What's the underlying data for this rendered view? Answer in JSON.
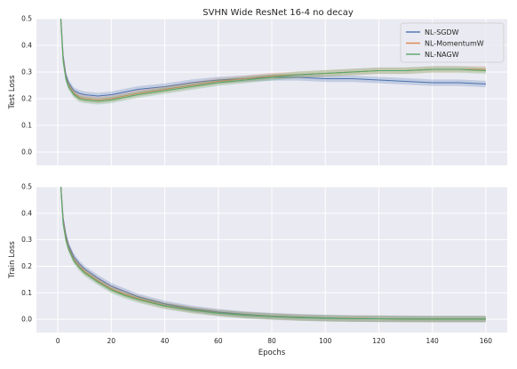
{
  "chart_data": {
    "type": "line",
    "title": "SVHN Wide ResNet 16-4 no decay",
    "xlabel": "Epochs",
    "xlim": [
      -8,
      168
    ],
    "xticks": [
      0,
      20,
      40,
      60,
      80,
      100,
      120,
      140,
      160
    ],
    "legend": {
      "placement": "top-right",
      "entries": [
        "NL-SGDW",
        "NL-MomentumW",
        "NL-NAGW"
      ]
    },
    "colors": {
      "NL-SGDW": "#4c72b0",
      "NL-MomentumW": "#dd8452",
      "NL-NAGW": "#55a868"
    },
    "grid": true,
    "background": "#eaeaf2",
    "panels": [
      {
        "name": "test",
        "ylabel": "Test Loss",
        "ylim": [
          -0.05,
          0.5
        ],
        "yticks": [
          "0.0",
          "0.1",
          "0.2",
          "0.3",
          "0.4",
          "0.5"
        ],
        "show_legend": true,
        "show_xticks": false,
        "series": [
          {
            "name": "NL-SGDW",
            "x": [
              1,
              2,
              3,
              4,
              6,
              8,
              10,
              15,
              20,
              25,
              30,
              40,
              50,
              60,
              70,
              80,
              90,
              100,
              110,
              120,
              130,
              140,
              150,
              160
            ],
            "y": [
              0.52,
              0.36,
              0.29,
              0.26,
              0.23,
              0.22,
              0.215,
              0.21,
              0.215,
              0.225,
              0.235,
              0.245,
              0.26,
              0.27,
              0.275,
              0.28,
              0.28,
              0.275,
              0.275,
              0.27,
              0.265,
              0.26,
              0.26,
              0.255
            ]
          },
          {
            "name": "NL-MomentumW",
            "x": [
              1,
              2,
              3,
              4,
              6,
              8,
              10,
              15,
              20,
              25,
              30,
              40,
              50,
              60,
              70,
              80,
              90,
              100,
              110,
              120,
              130,
              140,
              150,
              160
            ],
            "y": [
              0.52,
              0.35,
              0.28,
              0.25,
              0.22,
              0.205,
              0.2,
              0.195,
              0.2,
              0.21,
              0.22,
              0.235,
              0.25,
              0.265,
              0.275,
              0.285,
              0.29,
              0.295,
              0.3,
              0.305,
              0.305,
              0.31,
              0.31,
              0.31
            ]
          },
          {
            "name": "NL-NAGW",
            "x": [
              1,
              2,
              3,
              4,
              6,
              8,
              10,
              15,
              20,
              25,
              30,
              40,
              50,
              60,
              70,
              80,
              90,
              100,
              110,
              120,
              130,
              140,
              150,
              160
            ],
            "y": [
              0.52,
              0.34,
              0.275,
              0.245,
              0.215,
              0.2,
              0.195,
              0.19,
              0.195,
              0.205,
              0.215,
              0.23,
              0.245,
              0.26,
              0.27,
              0.28,
              0.29,
              0.295,
              0.3,
              0.305,
              0.305,
              0.31,
              0.31,
              0.305
            ]
          }
        ]
      },
      {
        "name": "train",
        "ylabel": "Train Loss",
        "ylim": [
          -0.05,
          0.5
        ],
        "yticks": [
          "0.0",
          "0.1",
          "0.2",
          "0.3",
          "0.4",
          "0.5"
        ],
        "show_legend": false,
        "show_xticks": true,
        "series": [
          {
            "name": "NL-SGDW",
            "x": [
              1,
              2,
              3,
              4,
              6,
              8,
              10,
              15,
              20,
              25,
              30,
              40,
              50,
              60,
              70,
              80,
              90,
              100,
              110,
              120,
              130,
              140,
              150,
              160
            ],
            "y": [
              0.52,
              0.38,
              0.32,
              0.28,
              0.235,
              0.21,
              0.19,
              0.155,
              0.125,
              0.105,
              0.085,
              0.058,
              0.04,
              0.027,
              0.018,
              0.012,
              0.008,
              0.005,
              0.003,
              0.002,
              0.002,
              0.001,
              0.001,
              0.001
            ]
          },
          {
            "name": "NL-MomentumW",
            "x": [
              1,
              2,
              3,
              4,
              6,
              8,
              10,
              15,
              20,
              25,
              30,
              40,
              50,
              60,
              70,
              80,
              90,
              100,
              110,
              120,
              130,
              140,
              150,
              160
            ],
            "y": [
              0.52,
              0.37,
              0.31,
              0.27,
              0.225,
              0.2,
              0.18,
              0.145,
              0.115,
              0.095,
              0.078,
              0.052,
              0.036,
              0.024,
              0.016,
              0.011,
              0.007,
              0.004,
              0.003,
              0.002,
              0.001,
              0.001,
              0.001,
              0.001
            ]
          },
          {
            "name": "NL-NAGW",
            "x": [
              1,
              2,
              3,
              4,
              6,
              8,
              10,
              15,
              20,
              25,
              30,
              40,
              50,
              60,
              70,
              80,
              90,
              100,
              110,
              120,
              130,
              140,
              150,
              160
            ],
            "y": [
              0.52,
              0.36,
              0.3,
              0.265,
              0.22,
              0.195,
              0.175,
              0.14,
              0.11,
              0.09,
              0.074,
              0.05,
              0.034,
              0.023,
              0.015,
              0.01,
              0.006,
              0.004,
              0.002,
              0.002,
              0.001,
              0.001,
              0.001,
              0.001
            ]
          }
        ]
      }
    ]
  }
}
